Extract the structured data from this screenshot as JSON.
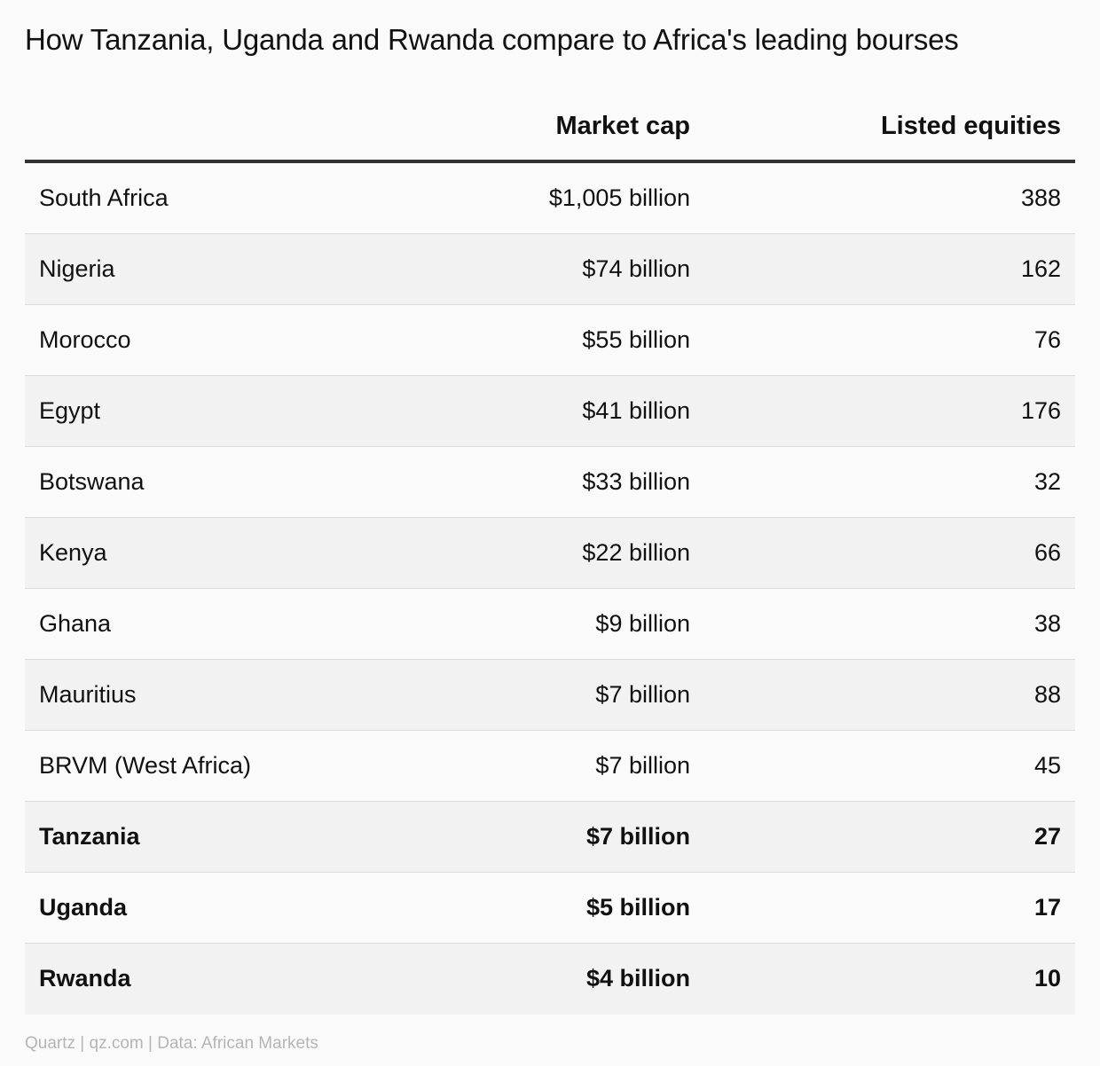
{
  "title": "How Tanzania, Uganda and Rwanda compare to Africa's leading bourses",
  "source": "Quartz | qz.com | Data: African Markets",
  "chart_data": {
    "type": "table",
    "title": "How Tanzania, Uganda and Rwanda compare to Africa's leading bourses",
    "columns": [
      "",
      "Market cap",
      "Listed equities"
    ],
    "rows": [
      {
        "country": "South Africa",
        "market_cap": "$1,005 billion",
        "listed_equities": "388",
        "highlight": false
      },
      {
        "country": "Nigeria",
        "market_cap": "$74 billion",
        "listed_equities": "162",
        "highlight": false
      },
      {
        "country": "Morocco",
        "market_cap": "$55 billion",
        "listed_equities": "76",
        "highlight": false
      },
      {
        "country": "Egypt",
        "market_cap": "$41 billion",
        "listed_equities": "176",
        "highlight": false
      },
      {
        "country": "Botswana",
        "market_cap": "$33 billion",
        "listed_equities": "32",
        "highlight": false
      },
      {
        "country": "Kenya",
        "market_cap": "$22 billion",
        "listed_equities": "66",
        "highlight": false
      },
      {
        "country": "Ghana",
        "market_cap": "$9 billion",
        "listed_equities": "38",
        "highlight": false
      },
      {
        "country": "Mauritius",
        "market_cap": "$7 billion",
        "listed_equities": "88",
        "highlight": false
      },
      {
        "country": "BRVM (West Africa)",
        "market_cap": "$7 billion",
        "listed_equities": "45",
        "highlight": false
      },
      {
        "country": "Tanzania",
        "market_cap": "$7 billion",
        "listed_equities": "27",
        "highlight": true
      },
      {
        "country": "Uganda",
        "market_cap": "$5 billion",
        "listed_equities": "17",
        "highlight": true
      },
      {
        "country": "Rwanda",
        "market_cap": "$4 billion",
        "listed_equities": "10",
        "highlight": true
      }
    ]
  }
}
